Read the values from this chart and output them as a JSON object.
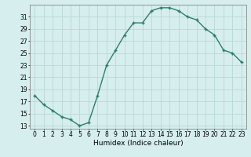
{
  "x": [
    0,
    1,
    2,
    3,
    4,
    5,
    6,
    7,
    8,
    9,
    10,
    11,
    12,
    13,
    14,
    15,
    16,
    17,
    18,
    19,
    20,
    21,
    22,
    23
  ],
  "y": [
    18,
    16.5,
    15.5,
    14.5,
    14,
    13,
    13.5,
    18,
    23,
    25.5,
    28,
    30,
    30,
    32,
    32.5,
    32.5,
    32,
    31,
    30.5,
    29,
    28,
    25.5,
    25,
    23.5
  ],
  "line_color": "#2e7d6e",
  "marker": "+",
  "bg_color": "#d6eeee",
  "grid_color": "#b8d8d8",
  "xlabel": "Humidex (Indice chaleur)",
  "xlim": [
    -0.5,
    23.5
  ],
  "ylim": [
    12.5,
    33
  ],
  "yticks": [
    13,
    15,
    17,
    19,
    21,
    23,
    25,
    27,
    29,
    31
  ],
  "xticks": [
    0,
    1,
    2,
    3,
    4,
    5,
    6,
    7,
    8,
    9,
    10,
    11,
    12,
    13,
    14,
    15,
    16,
    17,
    18,
    19,
    20,
    21,
    22,
    23
  ],
  "linewidth": 1.0,
  "markersize": 3.5,
  "markeredgewidth": 1.0,
  "tick_fontsize": 5.5,
  "xlabel_fontsize": 6.5
}
